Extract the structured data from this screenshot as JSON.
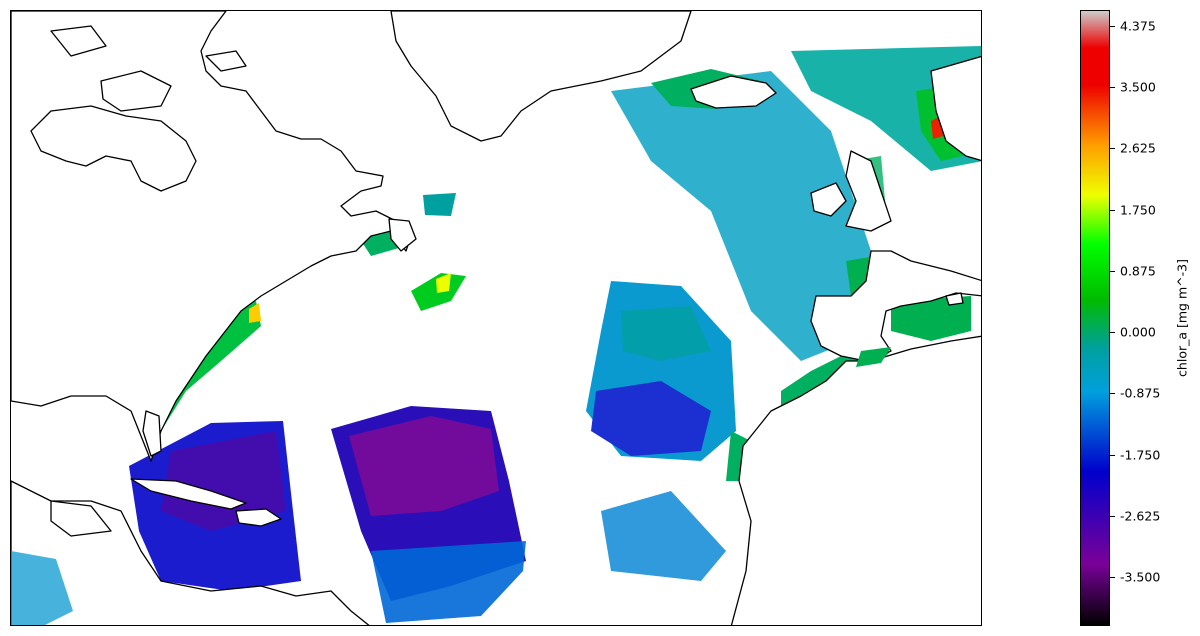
{
  "colorbar": {
    "label": "chlor_a [mg m^-3]",
    "ticks": [
      "4.375",
      "3.500",
      "2.625",
      "1.750",
      "0.875",
      "0.000",
      "-0.875",
      "-1.750",
      "-2.625",
      "-3.500"
    ],
    "tick_values": [
      4.375,
      3.5,
      2.625,
      1.75,
      0.875,
      0.0,
      -0.875,
      -1.75,
      -2.625,
      -3.5
    ],
    "range": [
      -4.2,
      4.6
    ],
    "colors": {
      "low": "#000000",
      "violet": "#7a0099",
      "blue": "#0000cc",
      "light_blue": "#00a0dd",
      "teal": "#00a0a0",
      "green": "#00bb00",
      "bright_green": "#00ff00",
      "yellow": "#eeff00",
      "orange": "#ffa000",
      "red": "#ee0000",
      "high": "#cccccc"
    }
  },
  "map": {
    "region": "North Atlantic",
    "coastline_color": "#000000",
    "background_color": "#ffffff"
  }
}
